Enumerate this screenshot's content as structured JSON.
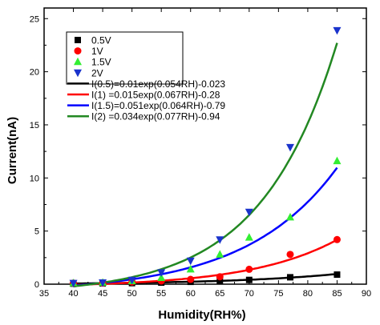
{
  "chart_data": {
    "type": "scatter",
    "xlabel": "Humidity(RH%)",
    "ylabel": "Current(nA)",
    "xlim": [
      35,
      90
    ],
    "ylim": [
      0,
      26
    ],
    "xticks": [
      35,
      40,
      45,
      50,
      55,
      60,
      65,
      70,
      75,
      80,
      85,
      90
    ],
    "yticks": [
      0,
      5,
      10,
      15,
      20,
      25
    ],
    "grid": false,
    "legend_position": "top-left",
    "series": [
      {
        "name": "0.5V",
        "marker": "square",
        "color": "#000000",
        "x": [
          40,
          45,
          50,
          55,
          60,
          65,
          70,
          77,
          85
        ],
        "y": [
          0.05,
          0.08,
          0.1,
          0.15,
          0.22,
          0.3,
          0.4,
          0.65,
          0.9
        ]
      },
      {
        "name": "1V",
        "marker": "circle",
        "color": "#ff0000",
        "x": [
          40,
          45,
          50,
          55,
          60,
          65,
          70,
          77,
          85
        ],
        "y": [
          0.1,
          0.12,
          0.2,
          0.3,
          0.45,
          0.7,
          1.4,
          2.8,
          4.2
        ]
      },
      {
        "name": "1.5V",
        "marker": "triangle-up",
        "color": "#33ee33",
        "x": [
          40,
          45,
          50,
          55,
          60,
          65,
          70,
          77,
          85
        ],
        "y": [
          0.1,
          0.15,
          0.3,
          0.6,
          1.4,
          2.8,
          4.4,
          6.3,
          11.6
        ]
      },
      {
        "name": "2V",
        "marker": "triangle-down",
        "color": "#1a33cc",
        "x": [
          40,
          45,
          50,
          55,
          60,
          65,
          70,
          77,
          85
        ],
        "y": [
          0.1,
          0.15,
          0.4,
          1.1,
          2.2,
          4.2,
          6.8,
          12.9,
          23.9
        ]
      }
    ],
    "fits": [
      {
        "name": "I(0.5)=0.01exp(0.054RH)-0.023",
        "color": "#000000",
        "a": 0.01,
        "b": 0.054,
        "c": -0.023
      },
      {
        "name": "I(1)  =0.015exp(0.067RH)-0.28",
        "color": "#ff0000",
        "a": 0.015,
        "b": 0.067,
        "c": -0.28
      },
      {
        "name": "I(1.5)=0.051exp(0.064RH)-0.79",
        "color": "#0000ff",
        "a": 0.051,
        "b": 0.064,
        "c": -0.79
      },
      {
        "name": "I(2)  =0.034exp(0.077RH)-0.94",
        "color": "#228822",
        "a": 0.034,
        "b": 0.077,
        "c": -0.94
      }
    ]
  }
}
